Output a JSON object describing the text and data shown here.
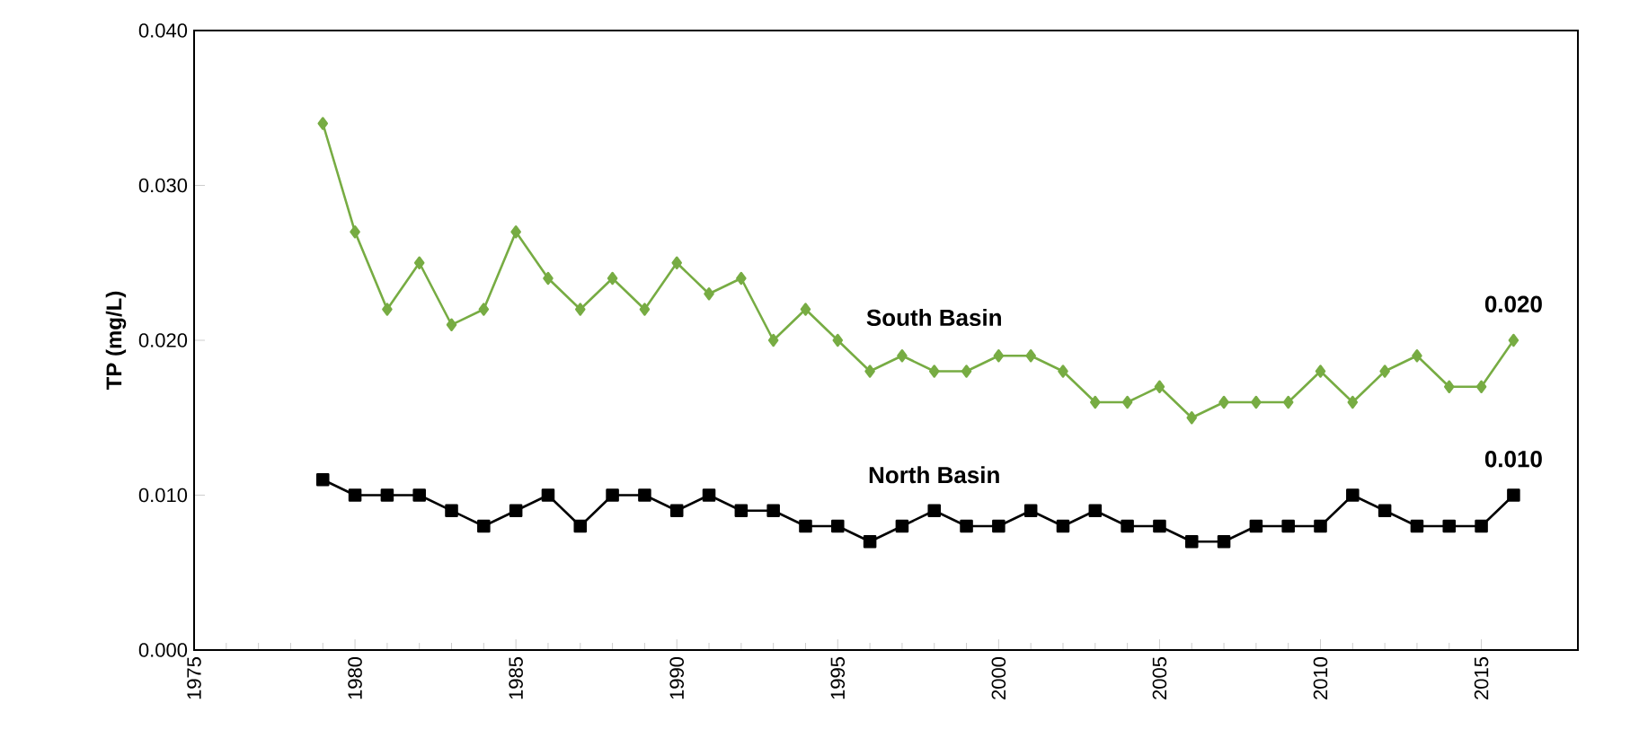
{
  "chart_data": {
    "type": "line",
    "ylabel": "TP (mg/L)",
    "xlim": [
      1975,
      2018
    ],
    "xticks": [
      1975,
      1980,
      1985,
      1990,
      1995,
      2000,
      2005,
      2010,
      2015
    ],
    "ylim": [
      0,
      0.04
    ],
    "yticks": [
      {
        "value": 0,
        "label": "0.000"
      },
      {
        "value": 0.01,
        "label": "0.010"
      },
      {
        "value": 0.02,
        "label": "0.020"
      },
      {
        "value": 0.03,
        "label": "0.030"
      },
      {
        "value": 0.04,
        "label": "0.040"
      }
    ],
    "x": [
      1979,
      1980,
      1981,
      1982,
      1983,
      1984,
      1985,
      1986,
      1987,
      1988,
      1989,
      1990,
      1991,
      1992,
      1993,
      1994,
      1995,
      1996,
      1997,
      1998,
      1999,
      2000,
      2001,
      2002,
      2003,
      2004,
      2005,
      2006,
      2007,
      2008,
      2009,
      2010,
      2011,
      2012,
      2013,
      2014,
      2015,
      2016
    ],
    "series": [
      {
        "name": "South Basin",
        "color": "#77ac43",
        "marker": "diamond",
        "values": [
          0.034,
          0.027,
          0.022,
          0.025,
          0.021,
          0.022,
          0.027,
          0.024,
          0.022,
          0.024,
          0.022,
          0.025,
          0.023,
          0.024,
          0.02,
          0.022,
          0.02,
          0.018,
          0.019,
          0.018,
          0.018,
          0.019,
          0.019,
          0.018,
          0.016,
          0.016,
          0.017,
          0.015,
          0.016,
          0.016,
          0.016,
          0.018,
          0.016,
          0.018,
          0.019,
          0.017,
          0.017,
          0.02
        ]
      },
      {
        "name": "North Basin",
        "color": "#000000",
        "marker": "square",
        "values": [
          0.011,
          0.01,
          0.01,
          0.01,
          0.009,
          0.008,
          0.009,
          0.01,
          0.008,
          0.01,
          0.01,
          0.009,
          0.01,
          0.009,
          0.009,
          0.008,
          0.008,
          0.007,
          0.008,
          0.009,
          0.008,
          0.008,
          0.009,
          0.008,
          0.009,
          0.008,
          0.008,
          0.007,
          0.007,
          0.008,
          0.008,
          0.008,
          0.01,
          0.009,
          0.008,
          0.008,
          0.008,
          0.01
        ]
      }
    ],
    "annotations": [
      {
        "text": "0.020",
        "x": 2016,
        "y": 0.02
      },
      {
        "text": "0.010",
        "x": 2016,
        "y": 0.01
      }
    ],
    "grid": false,
    "legend": false,
    "line_style": "solid"
  }
}
